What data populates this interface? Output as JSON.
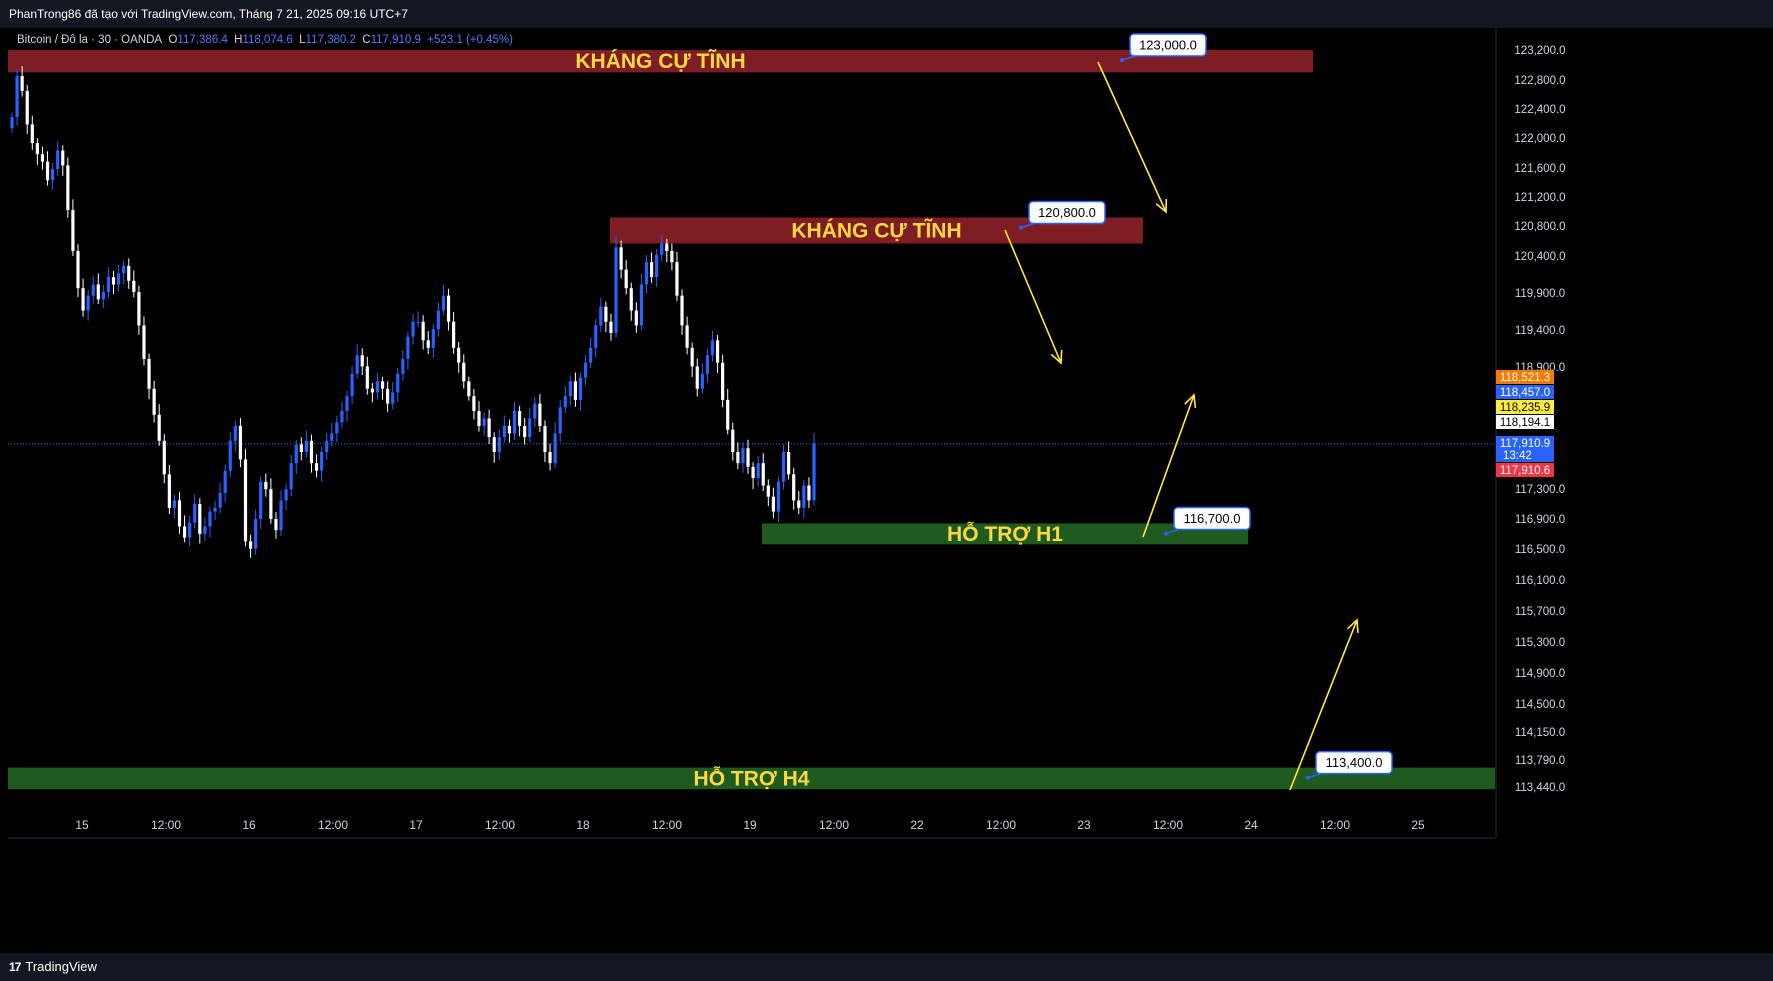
{
  "header": {
    "attribution": "PhanTrong86 đã tạo với TradingView.com, Tháng 7 21, 2025 09:16 UTC+7"
  },
  "legend": {
    "symbol": "Bitcoin / Đô la · 30 · OANDA",
    "open_label": "O",
    "open": "117,386.4",
    "high_label": "H",
    "high": "118,074.6",
    "low_label": "L",
    "low": "117,380.2",
    "close_label": "C",
    "close": "117,910.9",
    "change": "+523.1 (+0.45%)"
  },
  "footer": {
    "brand": "TradingView",
    "logo": "tv-logo-icon"
  },
  "colors": {
    "background": "#000000",
    "bull": "#2962ff",
    "bear": "#ffffff",
    "resistance_zone": "#7f1d24",
    "support_zone": "#1f5a1f",
    "zone_text": "#ffd93d",
    "arrow": "#ffeb3b"
  },
  "chart_data": {
    "type": "candlestick",
    "x_ticks": [
      "15",
      "12:00",
      "16",
      "12:00",
      "17",
      "12:00",
      "18",
      "12:00",
      "19",
      "12:00",
      "22",
      "12:00",
      "23",
      "12:00",
      "24",
      "12:00",
      "25"
    ],
    "y_ticks": [
      "123,200.0",
      "122,800.0",
      "122,400.0",
      "122,000.0",
      "121,600.0",
      "121,200.0",
      "120,800.0",
      "120,400.0",
      "119,900.0",
      "119,400.0",
      "118,900.0",
      "117,300.0",
      "116,900.0",
      "116,500.0",
      "116,100.0",
      "115,700.0",
      "115,300.0",
      "114,900.0",
      "114,500.0",
      "114,150.0",
      "113,790.0",
      "113,440.0"
    ],
    "ylim": [
      113100,
      123600
    ],
    "zones": [
      {
        "label": "KHÁNG CỰ TĨNH",
        "kind": "resistance",
        "low": 122900,
        "high": 123200,
        "callout": "123,000.0"
      },
      {
        "label": "KHÁNG CỰ TĨNH",
        "kind": "resistance",
        "low": 120600,
        "high": 120950,
        "callout": "120,800.0"
      },
      {
        "label": "HỖ TRỢ H1",
        "kind": "support",
        "low": 116560,
        "high": 116840,
        "callout": "116,700.0"
      },
      {
        "label": "HỖ TRỢ H4",
        "kind": "support",
        "low": 113270,
        "high": 113560,
        "callout": "113,400.0"
      }
    ],
    "price_badges": [
      {
        "value": "118,521.3",
        "color": "#f57c00",
        "text": "#ffffff"
      },
      {
        "value": "118,457.0",
        "color": "#2962ff",
        "text": "#ffffff"
      },
      {
        "value": "118,235.9",
        "color": "#ffeb3b",
        "text": "#000000"
      },
      {
        "value": "118,194.1",
        "color": "#ffffff",
        "text": "#000000"
      },
      {
        "value": "117,910.9",
        "sub": "13:42",
        "color": "#2962ff",
        "text": "#ffffff"
      },
      {
        "value": "117,910.6",
        "color": "#f23645",
        "text": "#ffffff"
      }
    ],
    "current_price": 117910.9,
    "closes": [
      122300,
      122850,
      122650,
      122200,
      121950,
      121800,
      121700,
      121450,
      121600,
      121850,
      121650,
      121050,
      120500,
      120000,
      119700,
      119900,
      120050,
      119850,
      119950,
      120150,
      120050,
      120200,
      120300,
      120100,
      119950,
      119500,
      119050,
      118650,
      118300,
      117950,
      117500,
      117050,
      117150,
      116800,
      116650,
      116850,
      117100,
      116700,
      116800,
      117000,
      117050,
      117250,
      117550,
      117950,
      118150,
      117700,
      116600,
      116500,
      116900,
      117400,
      117300,
      116900,
      116750,
      117150,
      117300,
      117650,
      117900,
      117800,
      117950,
      117650,
      117550,
      117800,
      117950,
      118050,
      118200,
      118350,
      118550,
      118850,
      119100,
      118950,
      118650,
      118600,
      118750,
      118650,
      118450,
      118600,
      118850,
      119050,
      119350,
      119550,
      119550,
      119300,
      119200,
      119450,
      119700,
      119900,
      119550,
      119200,
      119000,
      118750,
      118550,
      118350,
      118150,
      118250,
      118000,
      117800,
      118000,
      118150,
      118050,
      118350,
      118150,
      118000,
      118250,
      118450,
      118150,
      117800,
      117650,
      118050,
      118400,
      118550,
      118750,
      118500,
      118800,
      119000,
      119200,
      119500,
      119750,
      119550,
      119400,
      120550,
      120250,
      120000,
      119700,
      119500,
      120050,
      120350,
      120150,
      120450,
      120600,
      120500,
      120350,
      119900,
      119500,
      119200,
      118950,
      118650,
      118850,
      119100,
      119300,
      119000,
      118500,
      118100,
      117800,
      117650,
      117850,
      117600,
      117450,
      117650,
      117350,
      117200,
      117000,
      117400,
      117800,
      117500,
      117150,
      117050,
      117350,
      117150,
      117910.9
    ]
  }
}
